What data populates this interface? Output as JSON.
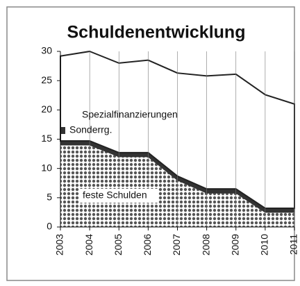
{
  "chart_data": {
    "type": "stacked-area",
    "title": "Schuldenentwicklung",
    "categories": [
      "2003",
      "2004",
      "2005",
      "2006",
      "2007",
      "2008",
      "2009",
      "2010",
      "2011"
    ],
    "series": [
      {
        "name": "feste Schulden",
        "color": "#555555",
        "values": [
          14,
          14,
          12,
          12,
          8,
          5.8,
          5.8,
          2.5,
          2.5
        ]
      },
      {
        "name": "Sonderrg.",
        "color": "#333333",
        "values": [
          0.7,
          0.7,
          0.7,
          0.7,
          0.7,
          0.7,
          0.7,
          0.7,
          0.7
        ]
      },
      {
        "name": "Spezialfinanzierungen",
        "color": "#ffffff",
        "values": [
          14.5,
          15.3,
          15.3,
          15.8,
          17.6,
          19.3,
          19.6,
          19.4,
          17.8
        ]
      }
    ],
    "ylim": [
      0,
      30
    ],
    "yticks": [
      0,
      5,
      10,
      15,
      20,
      25,
      30
    ]
  }
}
